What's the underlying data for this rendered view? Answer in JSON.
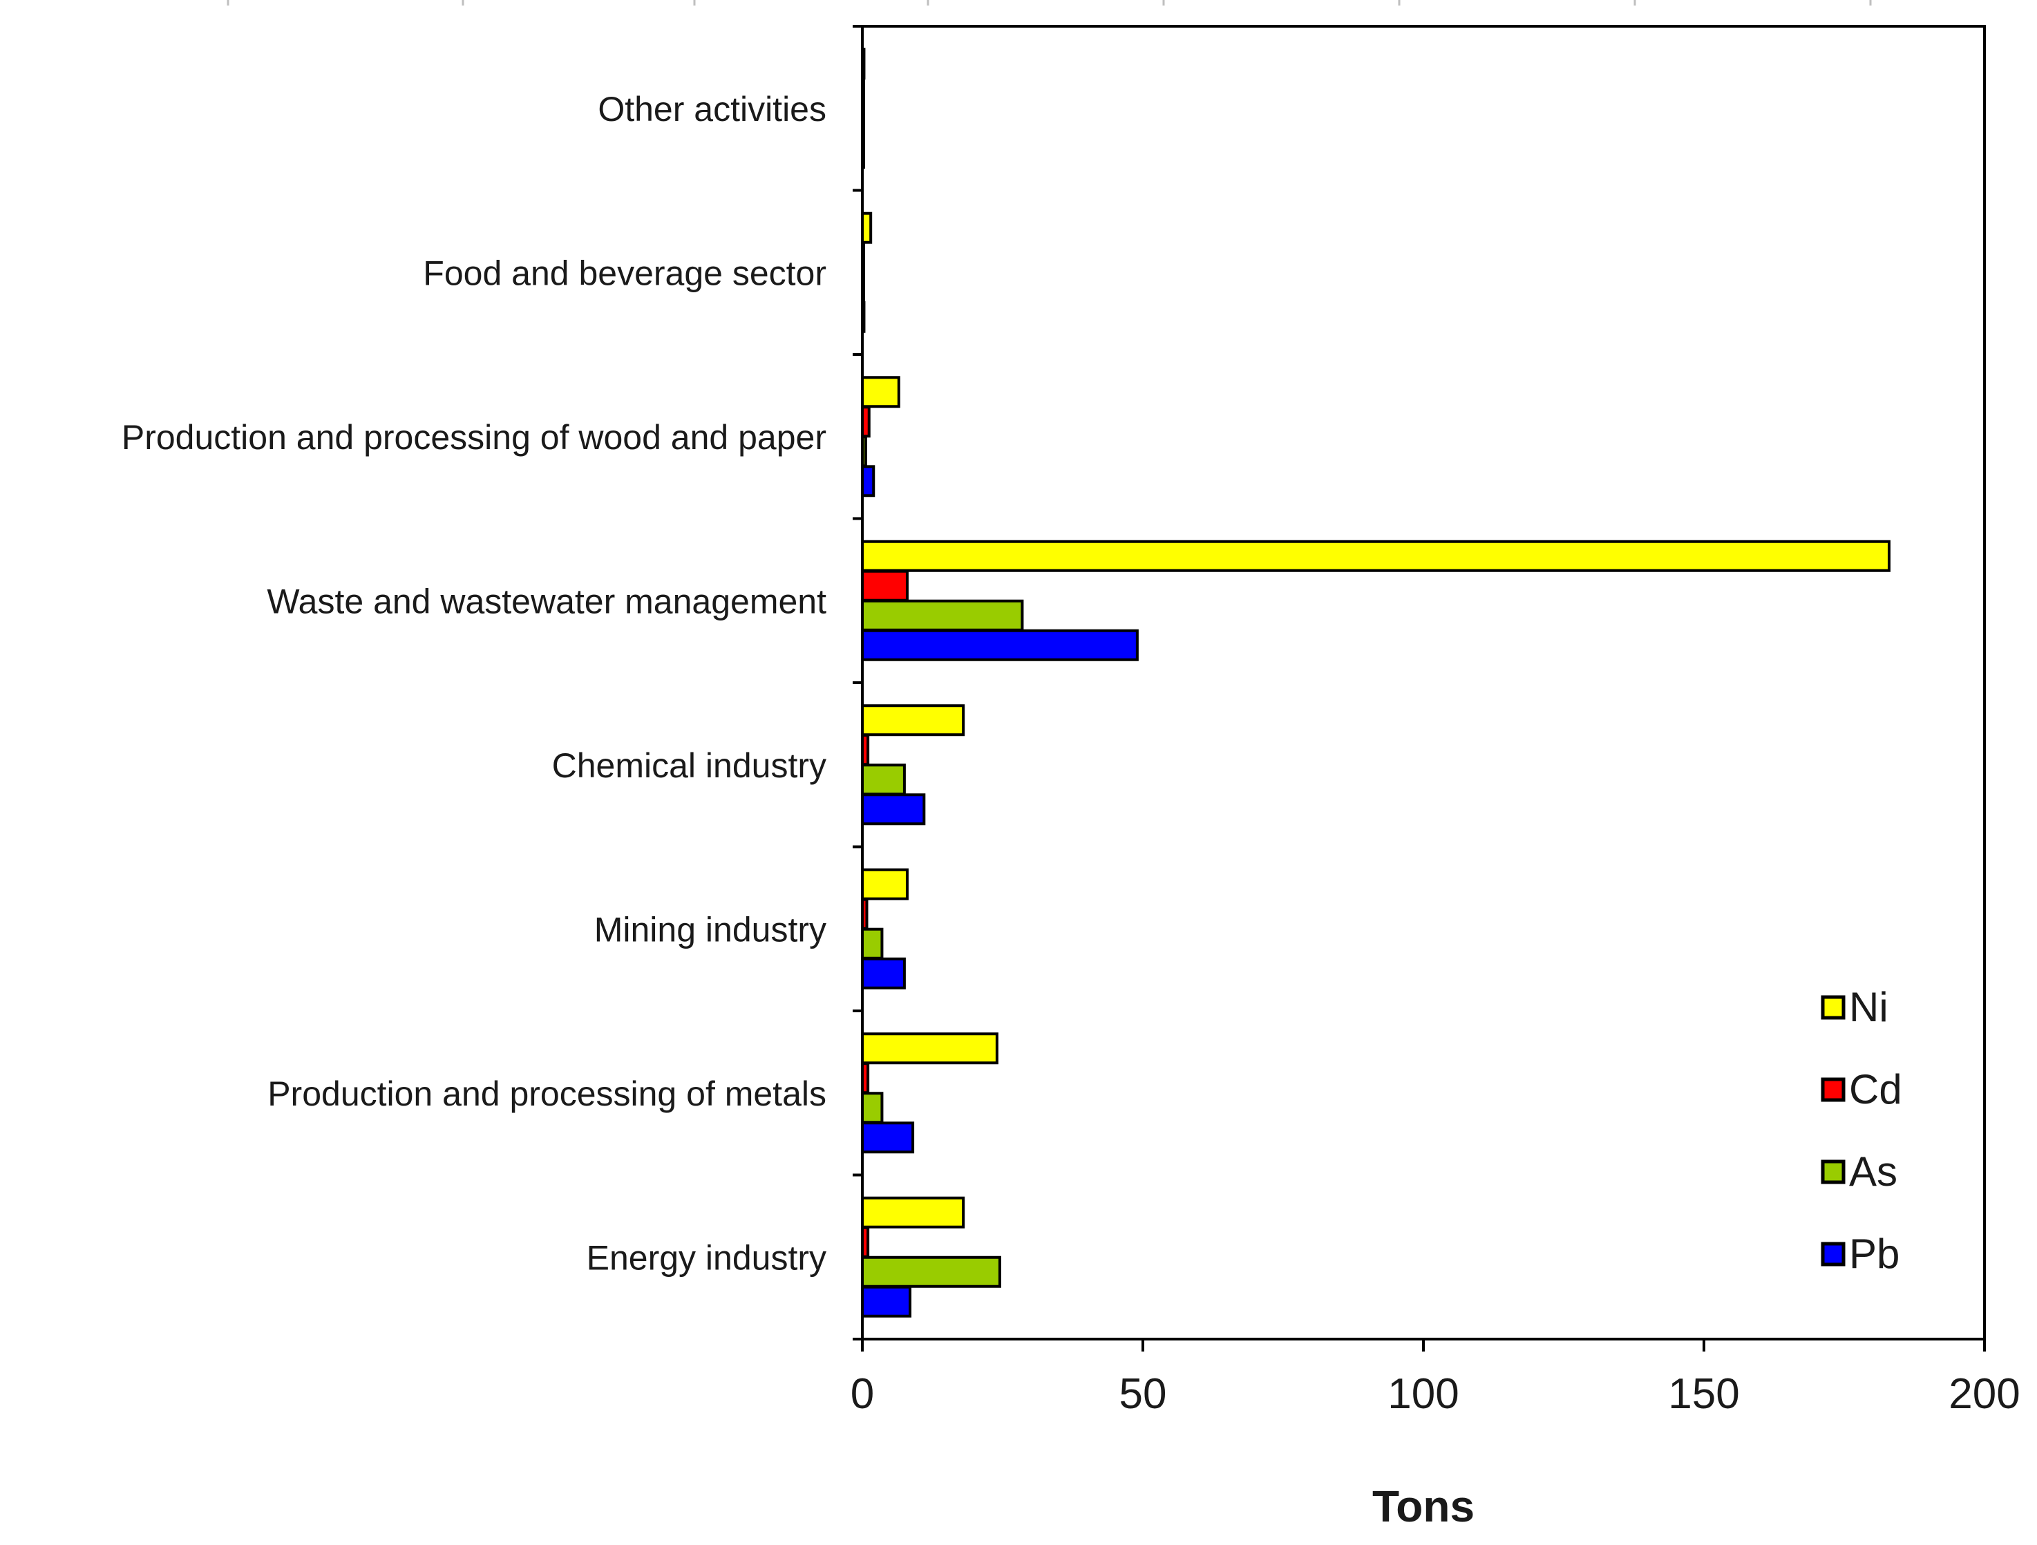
{
  "chart_data": {
    "type": "bar",
    "orientation": "horizontal",
    "categories": [
      "Energy industry",
      "Production and processing of metals",
      "Mining industry",
      "Chemical industry",
      "Waste and wastewater management",
      "Production and processing of wood and paper",
      "Food and beverage sector",
      "Other activities"
    ],
    "series": [
      {
        "name": "Ni",
        "color": "#ffff00",
        "values": [
          18,
          24,
          8,
          18,
          183,
          6.5,
          1.5,
          0.3
        ]
      },
      {
        "name": "Cd",
        "color": "#ff0000",
        "values": [
          1,
          1,
          0.8,
          1,
          8,
          1.2,
          0.2,
          0.1
        ]
      },
      {
        "name": "As",
        "color": "#99cc00",
        "values": [
          24.5,
          3.5,
          3.5,
          7.5,
          28.5,
          0.6,
          0.2,
          0.1
        ]
      },
      {
        "name": "Pb",
        "color": "#0000ff",
        "values": [
          8.5,
          9,
          7.5,
          11,
          49,
          2,
          0.3,
          0.2
        ]
      }
    ],
    "xlabel": "Tons",
    "ylabel": "",
    "xlim": [
      0,
      200
    ],
    "xticks": [
      "0",
      "50",
      "100",
      "150",
      "200"
    ],
    "legend": {
      "position": "bottom-right",
      "entries": [
        "Ni",
        "Cd",
        "As",
        "Pb"
      ]
    },
    "grid": false
  }
}
